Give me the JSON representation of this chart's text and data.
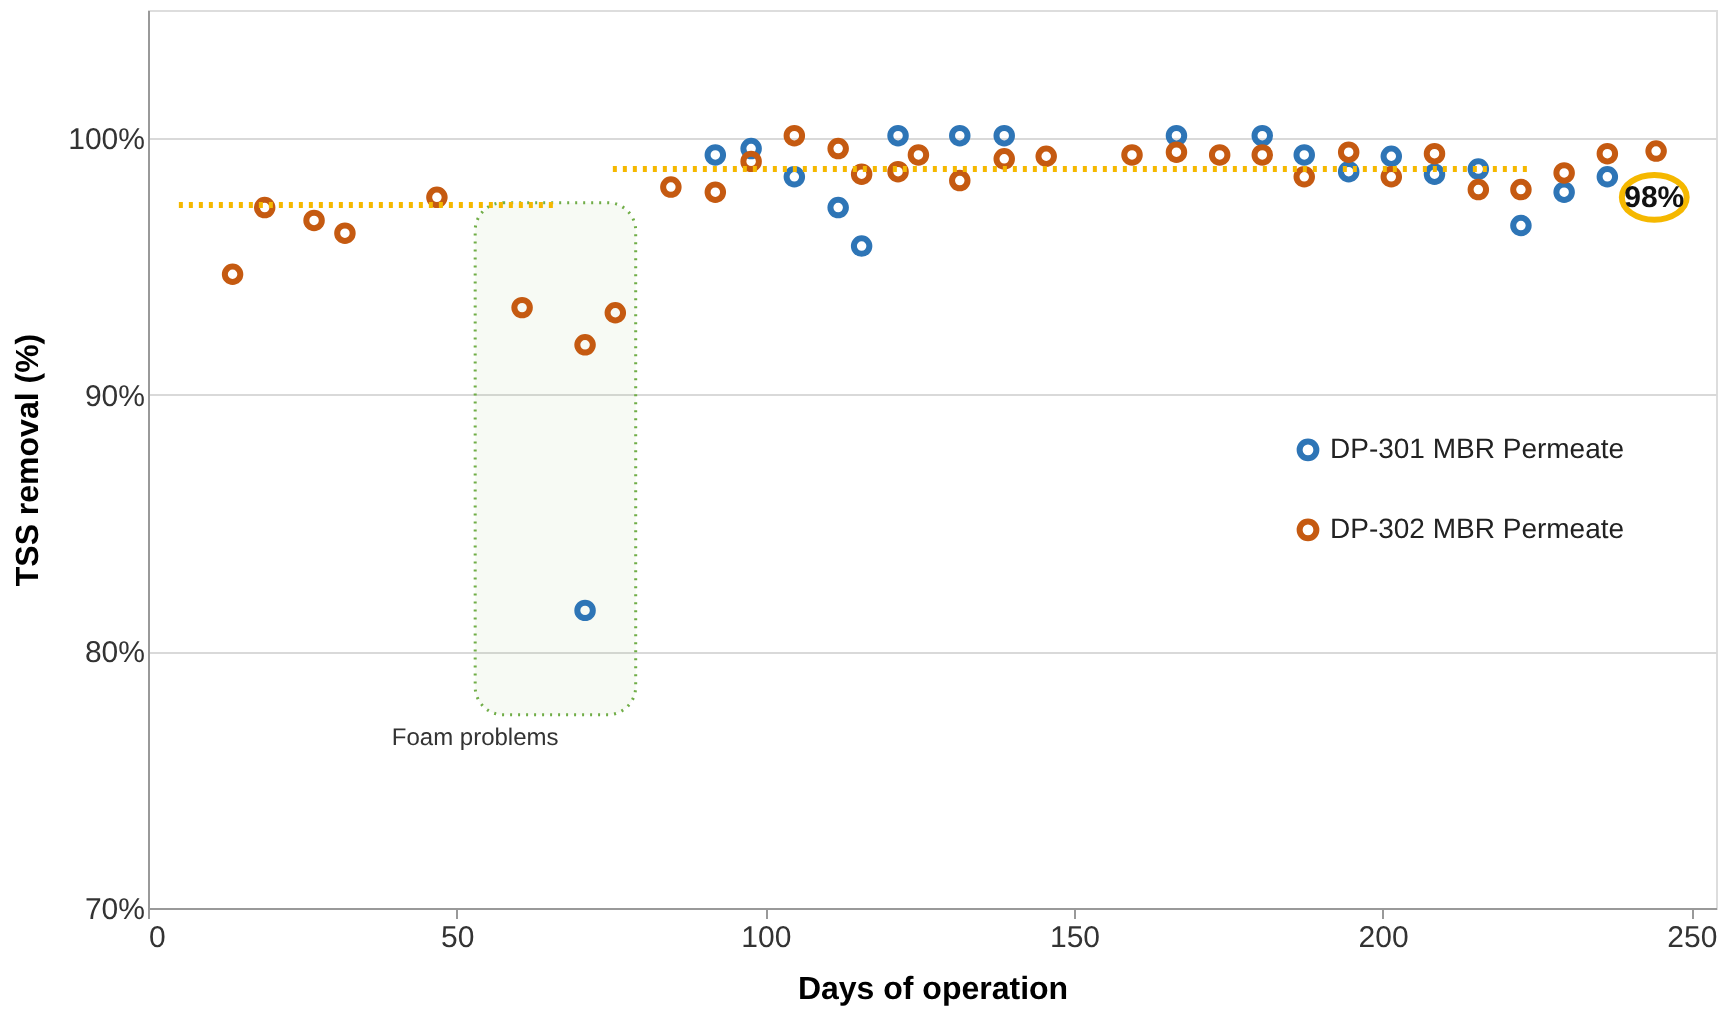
{
  "chart_data": {
    "type": "scatter",
    "xlabel": "Days of operation",
    "ylabel": "TSS removal (%)",
    "xlim": [
      0,
      254
    ],
    "xticks": [
      0,
      50,
      100,
      150,
      200,
      250
    ],
    "ylim": [
      70,
      105
    ],
    "yticks": [
      {
        "value": 70,
        "label": "70%"
      },
      {
        "value": 80,
        "label": "80%"
      },
      {
        "value": 90,
        "label": "90%"
      },
      {
        "value": 100,
        "label": "100%"
      }
    ],
    "grid": "y",
    "legend": "right",
    "series": [
      {
        "name": "DP-301 MBR Permeate",
        "color": "#2e75b6",
        "marker": "circle",
        "x": [
          70.8,
          91.9,
          97.7,
          104.7,
          111.8,
          115.6,
          121.5,
          131.5,
          138.7,
          166.6,
          180.5,
          187.3,
          194.5,
          201.4,
          208.4,
          215.5,
          222.4,
          229.4,
          236.4
        ],
        "values": [
          81.6,
          99.35,
          99.6,
          98.5,
          97.3,
          95.8,
          100.1,
          100.1,
          100.1,
          100.1,
          100.1,
          99.35,
          98.7,
          99.3,
          98.6,
          98.8,
          96.6,
          97.9,
          98.5
        ]
      },
      {
        "name": "DP-302 MBR Permeate",
        "color": "#c55a11",
        "marker": "circle",
        "x": [
          13.7,
          18.9,
          26.9,
          31.9,
          46.8,
          60.6,
          70.8,
          75.7,
          84.7,
          91.9,
          97.7,
          104.7,
          111.8,
          115.6,
          121.5,
          124.8,
          131.5,
          138.7,
          145.5,
          159.4,
          166.6,
          173.6,
          180.5,
          187.3,
          194.5,
          201.4,
          208.4,
          215.5,
          222.4,
          229.4,
          236.4,
          244.3
        ],
        "values": [
          94.7,
          97.3,
          96.8,
          96.3,
          97.7,
          93.4,
          91.95,
          93.2,
          98.1,
          97.9,
          99.1,
          100.1,
          99.6,
          98.6,
          98.7,
          99.35,
          98.35,
          99.2,
          99.3,
          99.35,
          99.46,
          99.35,
          99.35,
          98.5,
          99.46,
          98.5,
          99.4,
          98.0,
          98.0,
          98.65,
          99.4,
          99.5
        ]
      },
      {
        "type": "line",
        "marker": "none",
        "line_style": "dotted",
        "color": "#f5b800",
        "x": [
          5,
          66.4
        ],
        "values": [
          97.4,
          97.4
        ]
      },
      {
        "type": "line",
        "marker": "none",
        "line_style": "dotted",
        "color": "#f5b800",
        "x": [
          75.3,
          223.9
        ],
        "values": [
          98.8,
          98.8
        ]
      }
    ],
    "bands": [
      {
        "axis": "x",
        "from": 53,
        "to": 79,
        "label": "Foam problems",
        "color": "#70ad47"
      }
    ],
    "annotations": [
      {
        "text": "98%",
        "x": 244,
        "y": 97.7
      }
    ]
  }
}
